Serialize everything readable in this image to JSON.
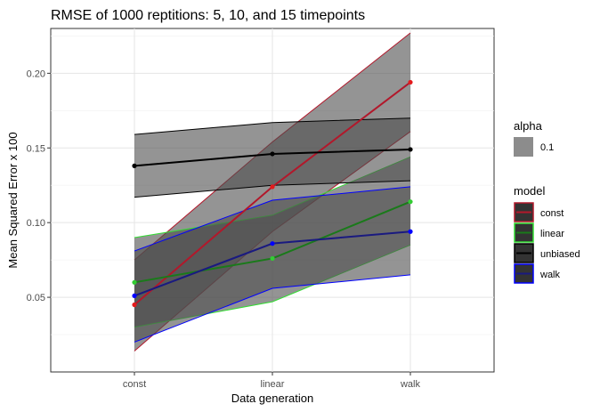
{
  "chart_data": {
    "type": "line",
    "title": "RMSE of 1000 reptitions: 5, 10, and 15 timepoints",
    "xlabel": "Data generation",
    "ylabel": "Mean Squared Error x 100",
    "categories": [
      "const",
      "linear",
      "walk"
    ],
    "yticks": [
      "0.05",
      "0.10",
      "0.15",
      "0.20"
    ],
    "ylim": [
      0.0,
      0.23
    ],
    "grid": true,
    "legend_position": "right",
    "series": [
      {
        "name": "const",
        "color": "#b2182b",
        "point_color": "#e41a1c",
        "values": [
          0.045,
          0.124,
          0.194
        ],
        "lower": [
          0.014,
          0.094,
          0.161
        ],
        "upper": [
          0.075,
          0.154,
          0.227
        ]
      },
      {
        "name": "linear",
        "color": "#1a7a1a",
        "point_color": "#33cc33",
        "band_color": "#33dd33",
        "values": [
          0.06,
          0.076,
          0.114
        ],
        "lower": [
          0.03,
          0.047,
          0.085
        ],
        "upper": [
          0.09,
          0.105,
          0.144
        ]
      },
      {
        "name": "unbiased",
        "color": "#000000",
        "point_color": "#000000",
        "band_color": "#000000",
        "values": [
          0.138,
          0.146,
          0.149
        ],
        "lower": [
          0.117,
          0.125,
          0.128
        ],
        "upper": [
          0.159,
          0.167,
          0.17
        ]
      },
      {
        "name": "walk",
        "color": "#1a1a80",
        "point_color": "#0000ff",
        "band_color": "#0000ff",
        "values": [
          0.051,
          0.086,
          0.094
        ],
        "lower": [
          0.02,
          0.056,
          0.065
        ],
        "upper": [
          0.081,
          0.115,
          0.124
        ]
      }
    ],
    "legend": {
      "alpha_title": "alpha",
      "alpha_value": "0.1",
      "model_title": "model"
    }
  }
}
